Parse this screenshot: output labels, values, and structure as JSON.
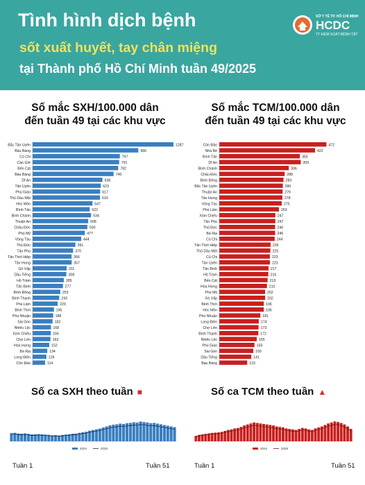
{
  "header": {
    "title_line1": "Tình hình dịch bệnh",
    "title_line2": "sốt xuất huyết, tay chân miệng",
    "title_line3": "tại Thành phố Hồ Chí Minh tuần 49/2025",
    "logo_small_top": "SỞ Y TẾ TP. HỒ CHÍ MINH",
    "logo_text": "HCDC",
    "logo_small_bottom": "TT KIỂM SOÁT BỆNH TẬT",
    "bg_color": "#3aa6a0",
    "highlight_color": "#f3e25a"
  },
  "chart_data": [
    {
      "type": "bar",
      "orientation": "horizontal",
      "title_line1": "Số mắc SXH/100.000 dân",
      "title_line2": "đến tuần 49 tại các khu vực",
      "color": "#3a7fc1",
      "categories": [
        "Bắc Tân Uyên",
        "Bàu Bàng",
        "Củ Chi",
        "Cần Giờ",
        "Bến Cát",
        "Bàu Bàng",
        "Dĩ An",
        "Tân Uyên",
        "Phú Giáo",
        "Thủ Dầu Một",
        "Hóc Môn",
        "Bình Tân",
        "Bình Chánh",
        "Thuận An",
        "Châu Đức",
        "Phú Mỹ",
        "Vũng Tàu",
        "Thủ Đức",
        "Tân Phú",
        "Tân Thới Hiệp",
        "Tân Hưng",
        "Gò Vấp",
        "Dầu Tiếng",
        "Hồ Tràm",
        "Tân Bình",
        "Bình Đông",
        "Bình Thạnh",
        "Phú Lâm",
        "Bình Thới",
        "Phú Nhuận",
        "Sài Gòn",
        "Nhiêu Lộc",
        "Xóm Chiếu",
        "Chợ Lớn",
        "Hòa Hưng",
        "Bà Rịa",
        "Long Điền",
        "Côn Đảo"
      ],
      "values": [
        1287,
        966,
        797,
        791,
        782,
        740,
        638,
        623,
        617,
        616,
        547,
        522,
        534,
        508,
        500,
        477,
        444,
        391,
        370,
        356,
        357,
        311,
        308,
        285,
        277,
        253,
        243,
        229,
        195,
        188,
        182,
        168,
        166,
        163,
        152,
        134,
        126,
        114
      ],
      "xlim": [
        0,
        1300
      ]
    },
    {
      "type": "bar",
      "orientation": "horizontal",
      "title_line1": "Số mắc TCM/100.000 dân",
      "title_line2": "đến tuần 49 tại các khu vực",
      "color": "#c8201e",
      "categories": [
        "Côn Đảo",
        "Nhà Bè",
        "Bình Tân",
        "Dĩ An",
        "Bình Chánh",
        "Châu Đức",
        "Bình Đông",
        "Bắc Tân Uyên",
        "Thuận An",
        "Tân Hưng",
        "Vũng Tàu",
        "Phú Lâm",
        "Xóm Chiếu",
        "Tân Phú",
        "Thủ Đức",
        "Bà Rịa",
        "Củ Chi",
        "Tân Thới Hiệp",
        "Thủ Dầu Một",
        "Củ Chi",
        "Tân Uyên",
        "Tân Bình",
        "Hồ Tràm",
        "Bến Cát",
        "Hòa Hưng",
        "Phú Mỹ",
        "Gò Vấp",
        "Bình Thới",
        "Hóc Môn",
        "Phú Nhuận",
        "Long Điền",
        "Chợ Lớn",
        "Bình Thạnh",
        "Nhiêu Lộc",
        "Phú Giáo",
        "Sài Gòn",
        "Dầu Tiếng",
        "Bàu Bàng"
      ],
      "values": [
        472,
        422,
        355,
        359,
        306,
        288,
        283,
        280,
        279,
        278,
        275,
        263,
        247,
        247,
        246,
        246,
        244,
        226,
        225,
        223,
        223,
        217,
        216,
        213,
        210,
        202,
        202,
        196,
        196,
        181,
        174,
        173,
        172,
        165,
        155,
        150,
        141,
        123
      ],
      "xlim": [
        0,
        480
      ]
    },
    {
      "type": "bar",
      "title": "Số ca SXH theo tuần",
      "color": "#3a7fc1",
      "legend": [
        "2024",
        "2025"
      ],
      "x_start_label": "Tuần 1",
      "x_end_label": "Tuần 51",
      "values": [
        230,
        240,
        220,
        215,
        225,
        210,
        195,
        200,
        205,
        198,
        190,
        185,
        170,
        175,
        165,
        180,
        190,
        200,
        215,
        220,
        240,
        255,
        270,
        300,
        320,
        340,
        360,
        390,
        420,
        450,
        470,
        480,
        500,
        490,
        510,
        520,
        540,
        530,
        560,
        545,
        530,
        510,
        520,
        500,
        480,
        460,
        440,
        420,
        400
      ]
    },
    {
      "type": "bar",
      "title": "Số ca TCM theo tuần",
      "color": "#c8201e",
      "legend": [
        "2024",
        "2025"
      ],
      "x_start_label": "Tuần 1",
      "x_end_label": "Tuần 51",
      "values": [
        110,
        130,
        140,
        150,
        160,
        170,
        175,
        180,
        190,
        210,
        230,
        240,
        260,
        270,
        290,
        320,
        340,
        360,
        380,
        370,
        360,
        350,
        340,
        330,
        320,
        300,
        290,
        280,
        260,
        250,
        240,
        230,
        250,
        270,
        260,
        240,
        230,
        260,
        280,
        300,
        330,
        360,
        380,
        400,
        390,
        370,
        340,
        300,
        250
      ]
    }
  ],
  "legend_marks": {
    "sxh": "■",
    "tcm": "▲"
  }
}
